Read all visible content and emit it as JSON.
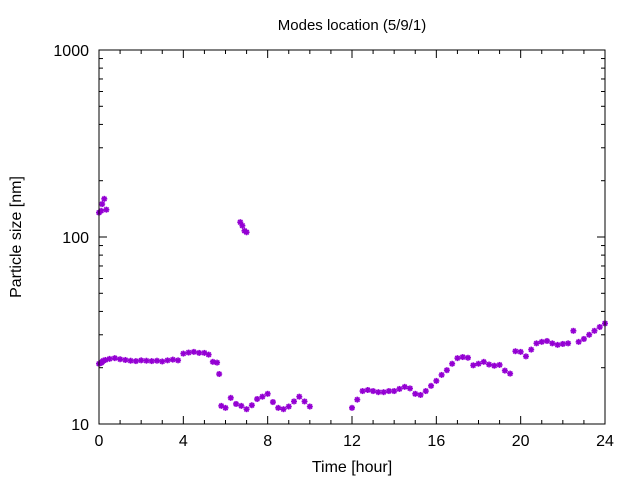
{
  "chart_data": {
    "type": "scatter",
    "title": "Modes location (5/9/1)",
    "xlabel": "Time [hour]",
    "ylabel": "Particle size [nm]",
    "xlim": [
      0,
      24
    ],
    "ylim": [
      10,
      1000
    ],
    "yscale": "log",
    "xticks": [
      0,
      4,
      8,
      12,
      16,
      20,
      24
    ],
    "xtick_labels": [
      "0",
      "4",
      "8",
      "12",
      "16",
      "20",
      "24"
    ],
    "yticks": [
      10,
      100,
      1000
    ],
    "ytick_labels": [
      "10",
      "100",
      "1000"
    ],
    "grid": false,
    "legend": "none",
    "marker_color": "#9400d3",
    "series": [
      {
        "x": [
          0.0,
          0.1,
          0.15,
          0.2,
          0.3,
          0.5,
          0.75,
          1.0,
          1.25,
          1.5,
          1.75,
          2.0,
          2.25,
          2.5,
          2.75,
          3.0,
          3.25,
          3.5,
          3.75,
          4.0,
          4.25,
          4.5,
          4.75,
          5.0,
          5.2,
          5.4,
          5.6,
          5.7,
          5.8,
          6.0,
          6.25,
          6.5,
          6.75,
          7.0,
          7.25,
          7.5,
          7.75,
          8.0,
          8.25,
          8.5,
          8.75,
          9.0,
          9.25,
          9.5,
          9.75,
          10.0,
          12.0,
          12.25,
          12.5,
          12.75,
          13.0,
          13.25,
          13.5,
          13.75,
          14.0,
          14.25,
          14.5,
          14.75,
          15.0,
          15.25,
          15.5,
          15.75,
          16.0,
          16.25,
          16.5,
          16.75,
          17.0,
          17.25,
          17.5,
          17.75,
          18.0,
          18.25,
          18.5,
          18.75,
          19.0,
          19.25,
          19.5,
          19.75,
          20.0,
          20.25,
          20.5,
          20.75,
          21.0,
          21.25,
          21.5,
          21.75,
          22.0,
          22.25,
          22.5,
          22.75,
          23.0,
          23.25,
          23.5,
          23.75,
          24.0
        ],
        "y": [
          21,
          21.2,
          21.5,
          21.8,
          22,
          22.3,
          22.5,
          22.2,
          22.0,
          21.8,
          21.7,
          21.9,
          21.8,
          21.7,
          21.8,
          21.6,
          21.9,
          22.1,
          21.9,
          23.8,
          24.1,
          24.3,
          24.0,
          24.0,
          23.5,
          21.5,
          21.3,
          18.5,
          12.5,
          12.2,
          13.8,
          12.8,
          12.5,
          12.0,
          12.6,
          13.6,
          14.0,
          14.5,
          13.1,
          12.2,
          12.0,
          12.4,
          13.2,
          14.0,
          13.2,
          12.4,
          12.2,
          13.5,
          15.0,
          15.2,
          15.0,
          14.8,
          14.8,
          15.0,
          15.0,
          15.4,
          15.8,
          15.5,
          14.5,
          14.3,
          15.0,
          16.0,
          17.0,
          18.3,
          19.4,
          21.0,
          22.5,
          22.8,
          22.6,
          20.6,
          21.0,
          21.5,
          20.8,
          20.5,
          20.7,
          19.3,
          18.6,
          24.5,
          24.3,
          23.0,
          25.0,
          27.0,
          27.5,
          27.8,
          27.0,
          26.5,
          26.8,
          27.0,
          31.5,
          27.5,
          28.5,
          30.0,
          31.5,
          33.0,
          34.5
        ]
      },
      {
        "x": [
          0.0,
          0.1,
          0.15,
          0.25,
          0.35,
          6.7,
          6.8,
          6.9,
          7.0
        ],
        "y": [
          135,
          138,
          150,
          160,
          140,
          120,
          115,
          108,
          106
        ]
      }
    ]
  }
}
